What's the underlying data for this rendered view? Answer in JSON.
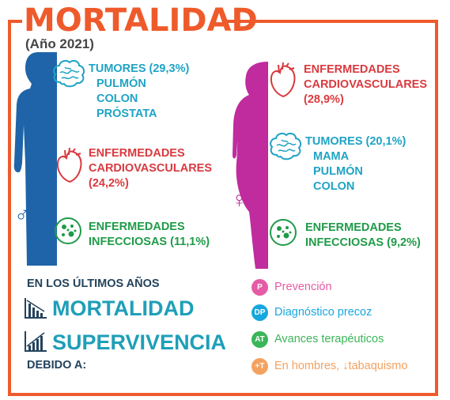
{
  "title": "MORTALIDAD",
  "subtitle": "(Año 2021)",
  "male": {
    "symbol": "♂",
    "tumors": {
      "label": "TUMORES (29,3%)",
      "items": [
        "PULMÓN",
        "COLON",
        "PRÓSTATA"
      ]
    },
    "cardio": {
      "line1": "ENFERMEDADES",
      "line2": "CARDIOVASCULARES",
      "line3": "(24,2%)"
    },
    "infect": {
      "line1": "ENFERMEDADES",
      "line2": "INFECCIOSAS (11,1%)"
    }
  },
  "female": {
    "symbol": "♀",
    "cardio": {
      "line1": "ENFERMEDADES",
      "line2": "CARDIOVASCULARES",
      "line3": "(28,9%)"
    },
    "tumors": {
      "label": "TUMORES (20,1%)",
      "items": [
        "MAMA",
        "PULMÓN",
        "COLON"
      ]
    },
    "infect": {
      "line1": "ENFERMEDADES",
      "line2": "INFECCIOSAS (9,2%)"
    }
  },
  "trends": {
    "intro": "EN LOS ÚLTIMOS AÑOS",
    "mortality": "MORTALIDAD",
    "survival": "SUPERVIVENCIA",
    "due": "DEBIDO A:"
  },
  "legend": [
    {
      "code": "P",
      "label": "Prevención",
      "color": "#e65ba5"
    },
    {
      "code": "DP",
      "label": "Diagnóstico precoz",
      "color": "#17a7df"
    },
    {
      "code": "AT",
      "label": "Avances terapéuticos",
      "color": "#3bb559"
    },
    {
      "code": "+T",
      "label": "En hombres, ↓tabaquismo",
      "color": "#f4a15f"
    }
  ],
  "colors": {
    "accent": "#ef5a2b",
    "male_blue": "#1f64a8",
    "female_magenta": "#c02b9e",
    "teal": "#1fa3c4",
    "red": "#d93a3f",
    "green": "#1f9b48",
    "navy": "#23435c"
  }
}
